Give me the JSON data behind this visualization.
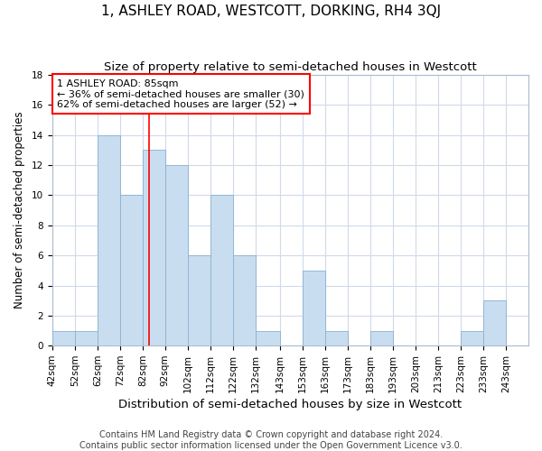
{
  "title": "1, ASHLEY ROAD, WESTCOTT, DORKING, RH4 3QJ",
  "subtitle": "Size of property relative to semi-detached houses in Westcott",
  "xlabel": "Distribution of semi-detached houses by size in Westcott",
  "ylabel": "Number of semi-detached properties",
  "bin_labels": [
    "42sqm",
    "52sqm",
    "62sqm",
    "72sqm",
    "82sqm",
    "92sqm",
    "102sqm",
    "112sqm",
    "122sqm",
    "132sqm",
    "143sqm",
    "153sqm",
    "163sqm",
    "173sqm",
    "183sqm",
    "193sqm",
    "203sqm",
    "213sqm",
    "223sqm",
    "233sqm",
    "243sqm"
  ],
  "bin_edges": [
    42,
    52,
    62,
    72,
    82,
    92,
    102,
    112,
    122,
    132,
    143,
    153,
    163,
    173,
    183,
    193,
    203,
    213,
    223,
    233,
    243
  ],
  "counts": [
    1,
    1,
    14,
    10,
    13,
    12,
    6,
    10,
    6,
    1,
    0,
    5,
    1,
    0,
    1,
    0,
    0,
    0,
    1,
    3,
    0
  ],
  "bar_color": "#c9ddf0",
  "bar_edge_color": "#8ab0d0",
  "grid_color": "#d0daea",
  "property_line_x": 85,
  "property_line_color": "red",
  "annotation_line1": "1 ASHLEY ROAD: 85sqm",
  "annotation_line2": "← 36% of semi-detached houses are smaller (30)",
  "annotation_line3": "62% of semi-detached houses are larger (52) →",
  "annotation_box_color": "white",
  "annotation_box_edge": "red",
  "ylim": [
    0,
    18
  ],
  "yticks": [
    0,
    2,
    4,
    6,
    8,
    10,
    12,
    14,
    16,
    18
  ],
  "footer_text": "Contains HM Land Registry data © Crown copyright and database right 2024.\nContains public sector information licensed under the Open Government Licence v3.0.",
  "title_fontsize": 11,
  "subtitle_fontsize": 9.5,
  "xlabel_fontsize": 9.5,
  "ylabel_fontsize": 8.5,
  "tick_fontsize": 7.5,
  "annotation_fontsize": 8,
  "footer_fontsize": 7
}
